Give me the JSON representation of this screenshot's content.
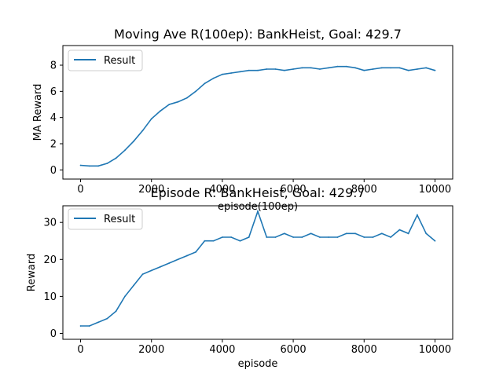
{
  "chart_data": [
    {
      "type": "line",
      "title": "Moving Ave R(100ep): BankHeist, Goal: 429.7",
      "xlabel": "episode(100ep)",
      "ylabel": "MA Reward",
      "xlim": [
        -500,
        10500
      ],
      "ylim": [
        -0.7,
        9.5
      ],
      "xticks": [
        0,
        2000,
        4000,
        6000,
        8000,
        10000
      ],
      "yticks": [
        0,
        2,
        4,
        6,
        8
      ],
      "legend": "top-left",
      "grid": false,
      "series": [
        {
          "name": "Result",
          "color": "#1f77b4",
          "x": [
            0,
            250,
            500,
            750,
            1000,
            1250,
            1500,
            1750,
            2000,
            2250,
            2500,
            2750,
            3000,
            3250,
            3500,
            3750,
            4000,
            4250,
            4500,
            4750,
            5000,
            5250,
            5500,
            5750,
            6000,
            6250,
            6500,
            6750,
            7000,
            7250,
            7500,
            7750,
            8000,
            8250,
            8500,
            8750,
            9000,
            9250,
            9500,
            9750,
            10000
          ],
          "values": [
            0.35,
            0.3,
            0.3,
            0.5,
            0.9,
            1.5,
            2.2,
            3.0,
            3.9,
            4.5,
            5.0,
            5.2,
            5.5,
            6.0,
            6.6,
            7.0,
            7.3,
            7.4,
            7.5,
            7.6,
            7.6,
            7.7,
            7.7,
            7.6,
            7.7,
            7.8,
            7.8,
            7.7,
            7.8,
            7.9,
            7.9,
            7.8,
            7.6,
            7.7,
            7.8,
            7.8,
            7.8,
            7.6,
            7.7,
            7.8,
            7.6
          ]
        }
      ]
    },
    {
      "type": "line",
      "title": "Episode R: BankHeist, Goal: 429.7",
      "xlabel": "episode",
      "ylabel": "Reward",
      "xlim": [
        -500,
        10500
      ],
      "ylim": [
        -1.6,
        34.5
      ],
      "xticks": [
        0,
        2000,
        4000,
        6000,
        8000,
        10000
      ],
      "yticks": [
        0,
        10,
        20,
        30
      ],
      "legend": "top-left",
      "grid": false,
      "series": [
        {
          "name": "Result",
          "color": "#1f77b4",
          "x": [
            0,
            250,
            500,
            750,
            1000,
            1250,
            1500,
            1750,
            2000,
            2250,
            2500,
            2750,
            3000,
            3250,
            3500,
            3750,
            4000,
            4250,
            4500,
            4750,
            5000,
            5250,
            5500,
            5750,
            6000,
            6250,
            6500,
            6750,
            7000,
            7250,
            7500,
            7750,
            8000,
            8250,
            8500,
            8750,
            9000,
            9250,
            9500,
            9750,
            10000
          ],
          "values": [
            2,
            2,
            3,
            4,
            6,
            10,
            13,
            16,
            17,
            18,
            19,
            20,
            21,
            22,
            25,
            25,
            26,
            26,
            25,
            26,
            33,
            26,
            26,
            27,
            26,
            26,
            27,
            26,
            26,
            26,
            27,
            27,
            26,
            26,
            27,
            26,
            28,
            27,
            32,
            27,
            25
          ]
        }
      ]
    }
  ]
}
